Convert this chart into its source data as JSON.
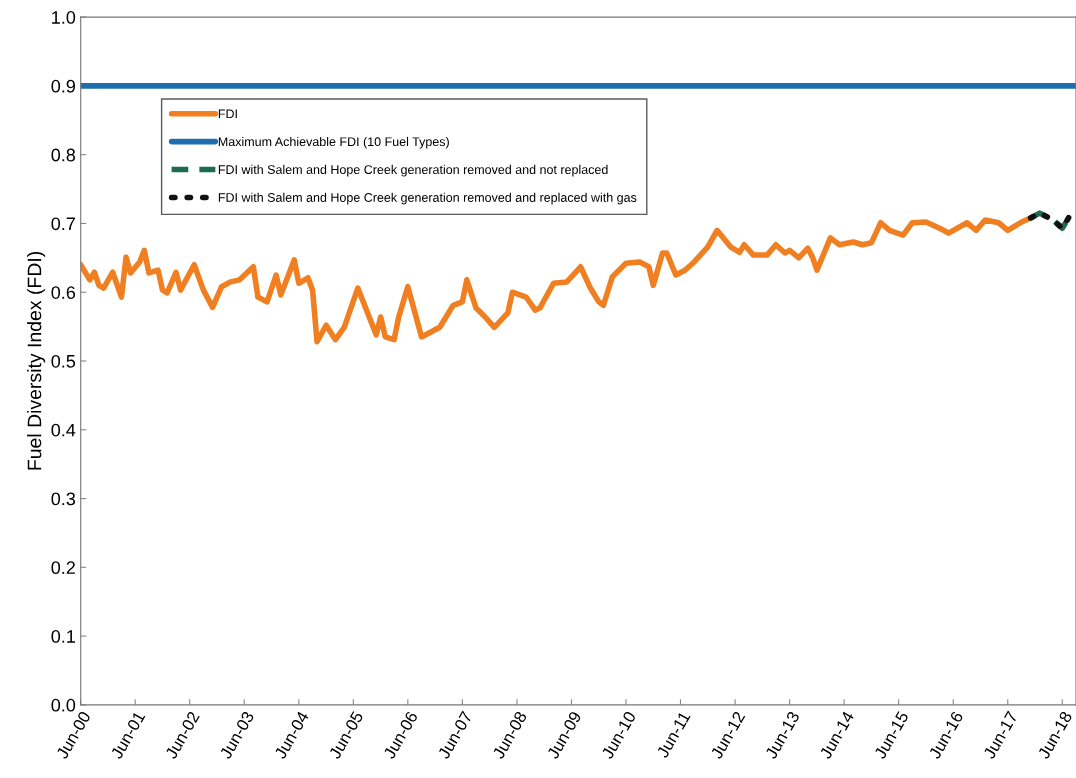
{
  "chart_data": {
    "type": "line",
    "ylabel": "Fuel Diversity Index (FDI)",
    "xlim": [
      "2000-06",
      "2018-09"
    ],
    "ylim": [
      0,
      1
    ],
    "yticks": [
      {
        "value": 0,
        "label": "0.0"
      },
      0.1,
      0.2,
      0.3,
      0.4,
      0.5,
      0.6,
      0.7,
      0.8,
      0.9,
      {
        "value": 1,
        "label": "1.0"
      }
    ],
    "xticks": [
      {
        "value": "2000-06",
        "label": "Jun-00"
      },
      {
        "value": "2001-06",
        "label": "Jun-01"
      },
      {
        "value": "2002-06",
        "label": "Jun-02"
      },
      {
        "value": "2003-06",
        "label": "Jun-03"
      },
      {
        "value": "2004-06",
        "label": "Jun-04"
      },
      {
        "value": "2005-06",
        "label": "Jun-05"
      },
      {
        "value": "2006-06",
        "label": "Jun-06"
      },
      {
        "value": "2007-06",
        "label": "Jun-07"
      },
      {
        "value": "2008-06",
        "label": "Jun-08"
      },
      {
        "value": "2009-06",
        "label": "Jun-09"
      },
      {
        "value": "2010-06",
        "label": "Jun-10"
      },
      {
        "value": "2011-06",
        "label": "Jun-11"
      },
      {
        "value": "2012-06",
        "label": "Jun-12"
      },
      {
        "value": "2013-06",
        "label": "Jun-13"
      },
      {
        "value": "2014-06",
        "label": "Jun-14"
      },
      {
        "value": "2015-06",
        "label": "Jun-15"
      },
      {
        "value": "2016-06",
        "label": "Jun-16"
      },
      {
        "value": "2017-06",
        "label": "Jun-17"
      },
      {
        "value": "2018-06",
        "label": "Jun-18"
      }
    ],
    "grid": false,
    "legend": "top left",
    "marker": "none",
    "series": [
      {
        "name": "FDI",
        "color": "#f07f22",
        "line_style": "solid",
        "x": [
          "2000-06",
          "2000-08",
          "2000-09",
          "2000-10",
          "2000-11",
          "2001-01",
          "2001-03",
          "2001-04",
          "2001-05",
          "2001-07",
          "2001-08",
          "2001-09",
          "2001-11",
          "2001-12",
          "2002-01",
          "2002-03",
          "2002-04",
          "2002-07",
          "2002-09",
          "2002-11",
          "2003-01",
          "2003-03",
          "2003-05",
          "2003-08",
          "2003-09",
          "2003-11",
          "2004-01",
          "2004-02",
          "2004-05",
          "2004-06",
          "2004-08",
          "2004-09",
          "2004-10",
          "2004-12",
          "2005-02",
          "2005-04",
          "2005-07",
          "2005-11",
          "2005-12",
          "2006-01",
          "2006-03",
          "2006-04",
          "2006-06",
          "2006-09",
          "2007-01",
          "2007-04",
          "2007-06",
          "2007-07",
          "2007-09",
          "2007-11",
          "2008-01",
          "2008-04",
          "2008-05",
          "2008-08",
          "2008-10",
          "2008-11",
          "2009-02",
          "2009-05",
          "2009-08",
          "2009-10",
          "2009-12",
          "2010-01",
          "2010-03",
          "2010-06",
          "2010-09",
          "2010-11",
          "2010-12",
          "2011-02",
          "2011-03",
          "2011-05",
          "2011-07",
          "2011-09",
          "2011-12",
          "2012-02",
          "2012-05",
          "2012-07",
          "2012-08",
          "2012-10",
          "2013-01",
          "2013-03",
          "2013-05",
          "2013-06",
          "2013-08",
          "2013-10",
          "2013-11",
          "2013-12",
          "2014-03",
          "2014-05",
          "2014-08",
          "2014-10",
          "2014-12",
          "2015-02",
          "2015-04",
          "2015-07",
          "2015-09",
          "2015-12",
          "2016-03",
          "2016-05",
          "2016-09",
          "2016-11",
          "2017-01",
          "2017-04",
          "2017-06",
          "2017-09",
          "2017-11"
        ],
        "values": [
          0.64,
          0.618,
          0.629,
          0.61,
          0.606,
          0.629,
          0.593,
          0.651,
          0.628,
          0.644,
          0.661,
          0.628,
          0.632,
          0.603,
          0.599,
          0.629,
          0.603,
          0.64,
          0.603,
          0.578,
          0.608,
          0.615,
          0.618,
          0.637,
          0.593,
          0.586,
          0.625,
          0.596,
          0.647,
          0.613,
          0.621,
          0.603,
          0.528,
          0.552,
          0.531,
          0.549,
          0.606,
          0.538,
          0.564,
          0.535,
          0.531,
          0.564,
          0.608,
          0.535,
          0.549,
          0.581,
          0.586,
          0.618,
          0.577,
          0.564,
          0.549,
          0.57,
          0.6,
          0.593,
          0.574,
          0.577,
          0.613,
          0.615,
          0.637,
          0.608,
          0.586,
          0.581,
          0.622,
          0.642,
          0.644,
          0.637,
          0.61,
          0.657,
          0.657,
          0.625,
          0.632,
          0.644,
          0.666,
          0.69,
          0.666,
          0.658,
          0.669,
          0.654,
          0.654,
          0.669,
          0.657,
          0.661,
          0.65,
          0.664,
          0.651,
          0.632,
          0.679,
          0.669,
          0.673,
          0.669,
          0.672,
          0.701,
          0.69,
          0.683,
          0.701,
          0.702,
          0.693,
          0.686,
          0.701,
          0.69,
          0.705,
          0.701,
          0.69,
          0.702,
          0.708
        ]
      },
      {
        "name": "Maximum Achievable FDI (10 Fuel Types)",
        "color": "#1f6fb0",
        "line_style": "solid",
        "x": [
          "2000-06",
          "2018-09"
        ],
        "values": [
          0.9,
          0.9
        ]
      },
      {
        "name": "FDI with Salem and Hope Creek generation removed and not replaced",
        "color": "#1e6b52",
        "line_style": "dashed",
        "x": [
          "2017-11",
          "2018-01",
          "2018-04",
          "2018-06",
          "2018-08"
        ],
        "values": [
          0.708,
          0.715,
          0.705,
          0.693,
          0.715
        ]
      },
      {
        "name": "FDI with Salem and Hope Creek generation removed and replaced with gas",
        "color": "#111111",
        "line_style": "dotted",
        "x": [
          "2017-11",
          "2018-01",
          "2018-04",
          "2018-06",
          "2018-08"
        ],
        "values": [
          0.708,
          0.715,
          0.705,
          0.693,
          0.715
        ]
      }
    ]
  }
}
